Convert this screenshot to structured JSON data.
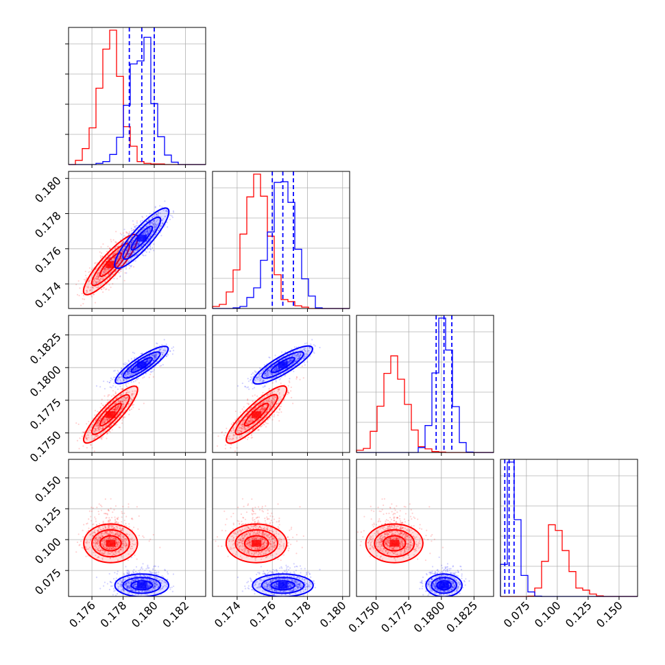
{
  "chart_data": {
    "type": "corner",
    "grid": true,
    "series_colors": [
      "#ff0000",
      "#0000ff"
    ],
    "parameters": [
      {
        "range": [
          0.1745,
          0.1833
        ],
        "ticks": [
          0.176,
          0.178,
          0.18,
          0.182
        ],
        "tick_labels": [
          "0.176",
          "0.178",
          "0.180",
          "0.182"
        ]
      },
      {
        "range": [
          0.1726,
          0.1804
        ],
        "ticks": [
          0.174,
          0.176,
          0.178,
          0.18
        ],
        "tick_labels": [
          "0.174",
          "0.176",
          "0.178",
          "0.180"
        ]
      },
      {
        "range": [
          0.1735,
          0.184
        ],
        "ticks": [
          0.175,
          0.1775,
          0.18,
          0.1825
        ],
        "tick_labels": [
          "0.1750",
          "0.1775",
          "0.1800",
          "0.1825"
        ]
      },
      {
        "range": [
          0.054,
          0.165
        ],
        "ticks": [
          0.075,
          0.1,
          0.125,
          0.15
        ],
        "tick_labels": [
          "0.075",
          "0.100",
          "0.125",
          "0.150"
        ]
      }
    ],
    "series": [
      {
        "color": "#ff0000",
        "means": [
          0.1772,
          0.1751,
          0.1764,
          0.097
        ],
        "sds": [
          0.00075,
          0.00075,
          0.00095,
          0.0068
        ],
        "hist_peaks": [
          0.1772,
          0.175,
          0.1763,
          0.096
        ]
      },
      {
        "color": "#0000ff",
        "means": [
          0.1792,
          0.1766,
          0.1802,
          0.063
        ],
        "sds": [
          0.00075,
          0.00075,
          0.0006,
          0.004
        ],
        "hist_peaks": [
          0.1792,
          0.177,
          0.1802,
          0.0575
        ],
        "quantiles": [
          [
            0.1784,
            0.1792,
            0.18
          ],
          [
            0.176,
            0.1766,
            0.1772
          ],
          [
            0.1796,
            0.1802,
            0.1808
          ],
          [
            0.0575,
            0.061,
            0.065
          ]
        ]
      }
    ]
  }
}
